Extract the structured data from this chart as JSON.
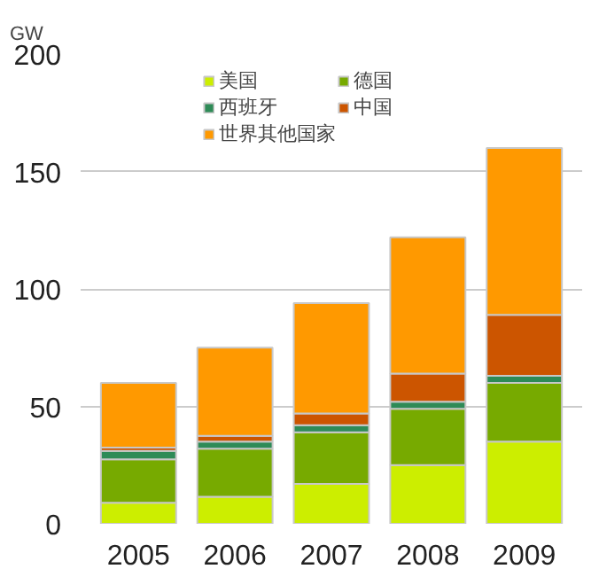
{
  "chart_data": {
    "type": "bar",
    "stacked": true,
    "ylabel": "GW",
    "categories": [
      "2005",
      "2006",
      "2007",
      "2008",
      "2009"
    ],
    "series": [
      {
        "name": "美国",
        "color": "#ccee00",
        "values": [
          9,
          11.5,
          17,
          25,
          35
        ]
      },
      {
        "name": "德国",
        "color": "#77aa00",
        "values": [
          18.5,
          20.5,
          22,
          24,
          25
        ]
      },
      {
        "name": "西班牙",
        "color": "#2e8b57",
        "values": [
          3.5,
          3,
          3,
          3,
          3
        ]
      },
      {
        "name": "中国",
        "color": "#cc5500",
        "values": [
          1.5,
          2.5,
          5,
          12,
          26
        ]
      },
      {
        "name": "世界其他国家",
        "color": "#ff9900",
        "values": [
          27.5,
          37.5,
          47,
          58,
          71
        ]
      }
    ],
    "ylim": [
      0,
      200
    ],
    "yticks": [
      0,
      50,
      100,
      150,
      200
    ],
    "grid": "y",
    "legend": "top"
  }
}
